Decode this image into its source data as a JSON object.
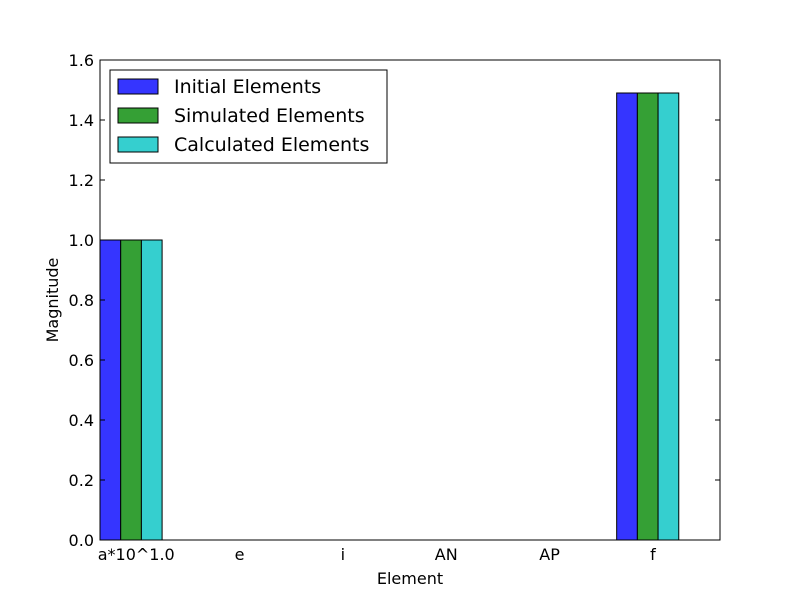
{
  "chart_data": {
    "type": "bar",
    "title": "",
    "xlabel": "Element",
    "ylabel": "Magnitude",
    "categories": [
      "a*10^1.0",
      "e",
      "i",
      "AN",
      "AP",
      "f"
    ],
    "ylim": [
      0,
      1.6
    ],
    "yticks": [
      "0.0",
      "0.2",
      "0.4",
      "0.6",
      "0.8",
      "1.0",
      "1.2",
      "1.4",
      "1.6"
    ],
    "grid": false,
    "legend_position": "upper-left",
    "series": [
      {
        "name": "Initial Elements",
        "color": "#3535ff",
        "values": [
          1.0,
          0.0,
          0.0,
          0.0,
          0.0,
          1.49
        ]
      },
      {
        "name": "Simulated Elements",
        "color": "#35a035",
        "values": [
          1.0,
          0.0,
          0.0,
          0.0,
          0.0,
          1.49
        ]
      },
      {
        "name": "Calculated Elements",
        "color": "#35cfcf",
        "values": [
          1.0,
          0.0,
          0.0,
          0.0,
          0.0,
          1.49
        ]
      }
    ]
  }
}
